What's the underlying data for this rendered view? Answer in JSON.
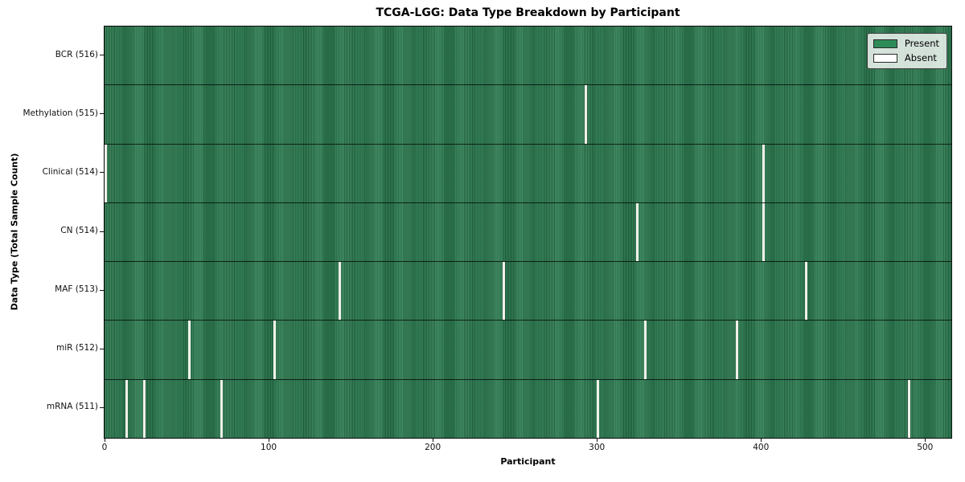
{
  "chart_data": {
    "type": "heatmap",
    "title": "TCGA-LGG: Data Type Breakdown by Participant",
    "xlabel": "Participant",
    "ylabel": "Data Type (Total Sample Count)",
    "n_participants": 516,
    "xlim": [
      0,
      516
    ],
    "x_ticks": [
      0,
      100,
      200,
      300,
      400,
      500
    ],
    "grid": false,
    "legend_position": "upper right",
    "legend_labels": [
      "Present",
      "Absent"
    ],
    "colors": {
      "present": "#2e8b57",
      "present_stripe_dark": "#1d5c3a",
      "absent": "#f0f0ea",
      "row_separator": "#000000"
    },
    "categories": [
      "BCR (516)",
      "Methylation (515)",
      "Clinical (514)",
      "CN (514)",
      "MAF (513)",
      "miR (512)",
      "mRNA (511)"
    ],
    "rows": [
      {
        "data_type": "BCR",
        "label": "BCR (516)",
        "present_count": 516,
        "absent_count": 0,
        "absent_participants_est": []
      },
      {
        "data_type": "Methylation",
        "label": "Methylation (515)",
        "present_count": 515,
        "absent_count": 1,
        "absent_participants_est": [
          293
        ]
      },
      {
        "data_type": "Clinical",
        "label": "Clinical (514)",
        "present_count": 514,
        "absent_count": 2,
        "absent_participants_est": [
          0,
          401
        ]
      },
      {
        "data_type": "CN",
        "label": "CN (514)",
        "present_count": 514,
        "absent_count": 2,
        "absent_participants_est": [
          324,
          401
        ]
      },
      {
        "data_type": "MAF",
        "label": "MAF (513)",
        "present_count": 513,
        "absent_count": 3,
        "absent_participants_est": [
          143,
          243,
          427
        ]
      },
      {
        "data_type": "miR",
        "label": "miR (512)",
        "present_count": 512,
        "absent_count": 4,
        "absent_participants_est": [
          51,
          103,
          329,
          385
        ]
      },
      {
        "data_type": "mRNA",
        "label": "mRNA (511)",
        "present_count": 511,
        "absent_count": 5,
        "absent_participants_est": [
          13,
          24,
          71,
          300,
          490
        ]
      }
    ]
  }
}
